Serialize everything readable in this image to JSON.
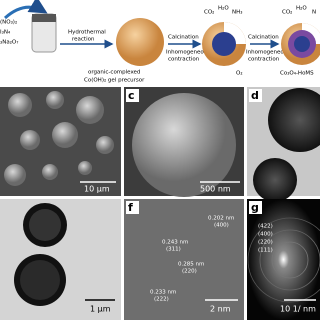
{
  "scheme": {
    "reagents": [
      "(NO₃)₂",
      "I₃N₄",
      "₃Na₂O₇"
    ],
    "step1": [
      "Hydrothermal",
      "reaction"
    ],
    "precursor": [
      "organic-complexed",
      "Co(OH)₂ gel precursor"
    ],
    "step2": [
      "Calcination",
      "Inhomogeneous",
      "contraction"
    ],
    "step3": [
      "Calcination",
      "Inhomogeneous",
      "contraction"
    ],
    "gases1": [
      "CO₂",
      "H₂O",
      "NH₃"
    ],
    "oxygen": "O₂",
    "gases2": [
      "CO₂",
      "H₂O",
      "N"
    ],
    "product": "Co₃O₄-HoMS"
  },
  "panels": {
    "c": {
      "label": "c",
      "scale": "500 nm"
    },
    "d": {
      "label": "d"
    },
    "a": {
      "scale": "10 μm"
    },
    "e": {
      "scale": "1 μm"
    },
    "f": {
      "label": "f",
      "scale": "2 nm",
      "fringes": [
        "0.202 nm",
        "(400)",
        "0.243 nm",
        "(311)",
        "0.285 nm",
        "(220)",
        "0.233 nm",
        "(222)"
      ]
    },
    "g": {
      "label": "g",
      "scale": "10 1/ nm",
      "rings": [
        "(422)",
        "(400)",
        "(220)",
        "(111)"
      ]
    }
  }
}
